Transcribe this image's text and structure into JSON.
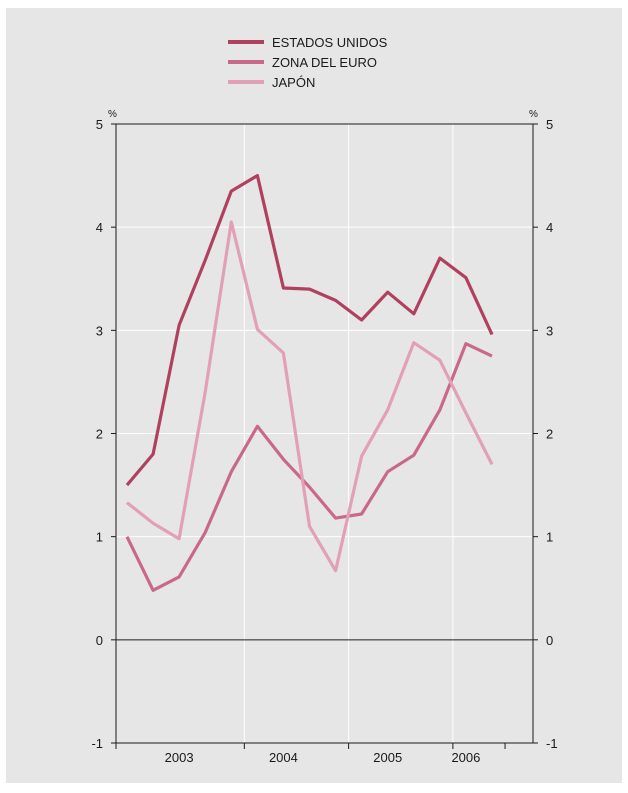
{
  "chart_data": {
    "type": "line",
    "title": "",
    "xlabel": "",
    "ylabel_left": "%",
    "ylabel_right": "%",
    "ylim": [
      -1,
      5
    ],
    "yticks": [
      "-1",
      "0",
      "1",
      "2",
      "3",
      "4",
      "5"
    ],
    "year_labels": [
      "2003",
      "2004",
      "2005",
      "2006"
    ],
    "x": [
      "2002-Q4",
      "2003-Q1",
      "2003-Q2",
      "2003-Q3",
      "2003-Q4",
      "2004-Q1",
      "2004-Q2",
      "2004-Q3",
      "2004-Q4",
      "2005-Q1",
      "2005-Q2",
      "2005-Q3",
      "2005-Q4",
      "2006-Q1",
      "2006-Q2"
    ],
    "grid": true,
    "legend_position": "top",
    "series": [
      {
        "name": "ESTADOS UNIDOS",
        "color": "#b0415e",
        "values": [
          1.5,
          1.8,
          3.05,
          3.68,
          4.35,
          4.5,
          3.41,
          3.4,
          3.29,
          3.1,
          3.37,
          3.16,
          3.7,
          3.51,
          2.96
        ]
      },
      {
        "name": "ZONA DEL EURO",
        "color": "#c9698a",
        "values": [
          1.0,
          0.48,
          0.61,
          1.04,
          1.63,
          2.07,
          1.75,
          1.48,
          1.18,
          1.22,
          1.63,
          1.79,
          2.23,
          2.87,
          2.75
        ]
      },
      {
        "name": "JAPÓN",
        "color": "#e1a0b6",
        "values": [
          1.33,
          1.13,
          0.98,
          2.4,
          4.05,
          3.01,
          2.78,
          1.1,
          0.67,
          1.78,
          2.23,
          2.88,
          2.71,
          2.2,
          1.7
        ]
      }
    ]
  }
}
